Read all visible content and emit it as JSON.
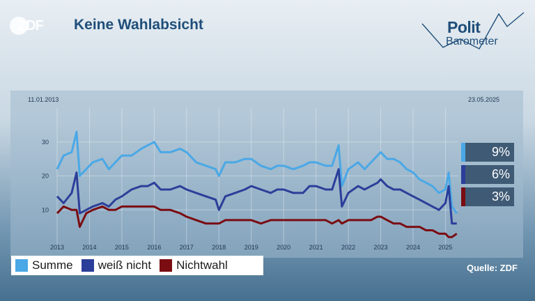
{
  "header": {
    "logo_text": "ZDF",
    "title": "Keine Wahlabsicht",
    "brand_line1": "Polit",
    "brand_line2": "Barometer"
  },
  "dates": {
    "start": "11.01.2013",
    "end": "23.05.2025"
  },
  "source": "Quelle: ZDF",
  "colors": {
    "summe": "#4aa8e6",
    "weiss_nicht": "#2b3e9a",
    "nichtwahl": "#7a0c12"
  },
  "chart_data": {
    "type": "line",
    "title": "Keine Wahlabsicht",
    "xlabel": "",
    "ylabel": "",
    "x_ticks": [
      "2013",
      "2014",
      "2015",
      "2016",
      "2017",
      "2018",
      "2019",
      "2020",
      "2021",
      "2022",
      "2023",
      "2024",
      "2025"
    ],
    "y_ticks": [
      10,
      20,
      30
    ],
    "xlim": [
      2013.0,
      2025.4
    ],
    "ylim": [
      0,
      40
    ],
    "grid": true,
    "legend": "bottom-left",
    "series": [
      {
        "name": "Summe",
        "color": "#4aa8e6",
        "points": [
          [
            2013.0,
            22
          ],
          [
            2013.2,
            26
          ],
          [
            2013.45,
            27
          ],
          [
            2013.6,
            33
          ],
          [
            2013.7,
            20
          ],
          [
            2013.9,
            22
          ],
          [
            2014.1,
            24
          ],
          [
            2014.4,
            25
          ],
          [
            2014.6,
            22
          ],
          [
            2014.8,
            24
          ],
          [
            2015.0,
            26
          ],
          [
            2015.3,
            26
          ],
          [
            2015.6,
            28
          ],
          [
            2015.8,
            29
          ],
          [
            2016.0,
            30
          ],
          [
            2016.2,
            27
          ],
          [
            2016.5,
            27
          ],
          [
            2016.8,
            28
          ],
          [
            2017.0,
            27
          ],
          [
            2017.3,
            24
          ],
          [
            2017.6,
            23
          ],
          [
            2017.9,
            22
          ],
          [
            2018.0,
            20
          ],
          [
            2018.2,
            24
          ],
          [
            2018.5,
            24
          ],
          [
            2018.8,
            25
          ],
          [
            2019.0,
            25
          ],
          [
            2019.3,
            23
          ],
          [
            2019.6,
            22
          ],
          [
            2019.8,
            23
          ],
          [
            2020.0,
            23
          ],
          [
            2020.3,
            22
          ],
          [
            2020.6,
            23
          ],
          [
            2020.8,
            24
          ],
          [
            2021.0,
            24
          ],
          [
            2021.3,
            23
          ],
          [
            2021.5,
            23
          ],
          [
            2021.7,
            29
          ],
          [
            2021.8,
            17
          ],
          [
            2022.0,
            22
          ],
          [
            2022.3,
            24
          ],
          [
            2022.5,
            22
          ],
          [
            2022.7,
            24
          ],
          [
            2022.9,
            26
          ],
          [
            2023.0,
            27
          ],
          [
            2023.2,
            25
          ],
          [
            2023.4,
            25
          ],
          [
            2023.6,
            24
          ],
          [
            2023.8,
            22
          ],
          [
            2024.0,
            21
          ],
          [
            2024.2,
            19
          ],
          [
            2024.4,
            18
          ],
          [
            2024.6,
            17
          ],
          [
            2024.8,
            15
          ],
          [
            2025.0,
            16
          ],
          [
            2025.1,
            21
          ],
          [
            2025.2,
            11
          ],
          [
            2025.35,
            9
          ]
        ]
      },
      {
        "name": "weiß nicht",
        "color": "#2b3e9a",
        "points": [
          [
            2013.0,
            14
          ],
          [
            2013.2,
            12
          ],
          [
            2013.45,
            15
          ],
          [
            2013.6,
            21
          ],
          [
            2013.7,
            9
          ],
          [
            2013.9,
            10
          ],
          [
            2014.1,
            11
          ],
          [
            2014.4,
            12
          ],
          [
            2014.6,
            11
          ],
          [
            2014.8,
            13
          ],
          [
            2015.0,
            14
          ],
          [
            2015.3,
            16
          ],
          [
            2015.6,
            17
          ],
          [
            2015.8,
            17
          ],
          [
            2016.0,
            18
          ],
          [
            2016.2,
            16
          ],
          [
            2016.5,
            16
          ],
          [
            2016.8,
            17
          ],
          [
            2017.0,
            16
          ],
          [
            2017.3,
            15
          ],
          [
            2017.6,
            14
          ],
          [
            2017.9,
            13
          ],
          [
            2018.0,
            10
          ],
          [
            2018.2,
            14
          ],
          [
            2018.5,
            15
          ],
          [
            2018.8,
            16
          ],
          [
            2019.0,
            17
          ],
          [
            2019.3,
            16
          ],
          [
            2019.6,
            15
          ],
          [
            2019.8,
            16
          ],
          [
            2020.0,
            16
          ],
          [
            2020.3,
            15
          ],
          [
            2020.6,
            15
          ],
          [
            2020.8,
            17
          ],
          [
            2021.0,
            17
          ],
          [
            2021.3,
            16
          ],
          [
            2021.5,
            16
          ],
          [
            2021.7,
            22
          ],
          [
            2021.8,
            11
          ],
          [
            2022.0,
            15
          ],
          [
            2022.3,
            17
          ],
          [
            2022.5,
            16
          ],
          [
            2022.7,
            17
          ],
          [
            2022.9,
            18
          ],
          [
            2023.0,
            19
          ],
          [
            2023.2,
            17
          ],
          [
            2023.4,
            16
          ],
          [
            2023.6,
            16
          ],
          [
            2023.8,
            15
          ],
          [
            2024.0,
            14
          ],
          [
            2024.2,
            13
          ],
          [
            2024.4,
            12
          ],
          [
            2024.6,
            11
          ],
          [
            2024.8,
            10
          ],
          [
            2025.0,
            12
          ],
          [
            2025.1,
            17
          ],
          [
            2025.2,
            6
          ],
          [
            2025.35,
            6
          ]
        ]
      },
      {
        "name": "Nichtwahl",
        "color": "#7a0c12",
        "points": [
          [
            2013.0,
            9
          ],
          [
            2013.2,
            11
          ],
          [
            2013.45,
            10
          ],
          [
            2013.6,
            10
          ],
          [
            2013.7,
            5
          ],
          [
            2013.9,
            9
          ],
          [
            2014.1,
            10
          ],
          [
            2014.4,
            11
          ],
          [
            2014.6,
            10
          ],
          [
            2014.8,
            10
          ],
          [
            2015.0,
            11
          ],
          [
            2015.3,
            11
          ],
          [
            2015.6,
            11
          ],
          [
            2015.8,
            11
          ],
          [
            2016.0,
            11
          ],
          [
            2016.2,
            10
          ],
          [
            2016.5,
            10
          ],
          [
            2016.8,
            9
          ],
          [
            2017.0,
            8
          ],
          [
            2017.3,
            7
          ],
          [
            2017.6,
            6
          ],
          [
            2017.9,
            6
          ],
          [
            2018.0,
            6
          ],
          [
            2018.2,
            7
          ],
          [
            2018.5,
            7
          ],
          [
            2018.8,
            7
          ],
          [
            2019.0,
            7
          ],
          [
            2019.3,
            6
          ],
          [
            2019.6,
            7
          ],
          [
            2019.8,
            7
          ],
          [
            2020.0,
            7
          ],
          [
            2020.3,
            7
          ],
          [
            2020.6,
            7
          ],
          [
            2020.8,
            7
          ],
          [
            2021.0,
            7
          ],
          [
            2021.3,
            7
          ],
          [
            2021.5,
            6
          ],
          [
            2021.7,
            7
          ],
          [
            2021.8,
            6
          ],
          [
            2022.0,
            7
          ],
          [
            2022.3,
            7
          ],
          [
            2022.5,
            7
          ],
          [
            2022.7,
            7
          ],
          [
            2022.9,
            8
          ],
          [
            2023.0,
            8
          ],
          [
            2023.2,
            7
          ],
          [
            2023.4,
            6
          ],
          [
            2023.6,
            6
          ],
          [
            2023.8,
            5
          ],
          [
            2024.0,
            5
          ],
          [
            2024.2,
            5
          ],
          [
            2024.4,
            4
          ],
          [
            2024.6,
            4
          ],
          [
            2024.8,
            3
          ],
          [
            2025.0,
            3
          ],
          [
            2025.1,
            2
          ],
          [
            2025.2,
            2
          ],
          [
            2025.35,
            3
          ]
        ]
      }
    ],
    "end_values": [
      {
        "label": "9%",
        "color": "#4aa8e6"
      },
      {
        "label": "6%",
        "color": "#2b3e9a"
      },
      {
        "label": "3%",
        "color": "#7a0c12"
      }
    ]
  },
  "legend": [
    {
      "label": "Summe",
      "color": "#4aa8e6"
    },
    {
      "label": "weiß nicht",
      "color": "#2b3e9a"
    },
    {
      "label": "Nichtwahl",
      "color": "#7a0c12"
    }
  ]
}
